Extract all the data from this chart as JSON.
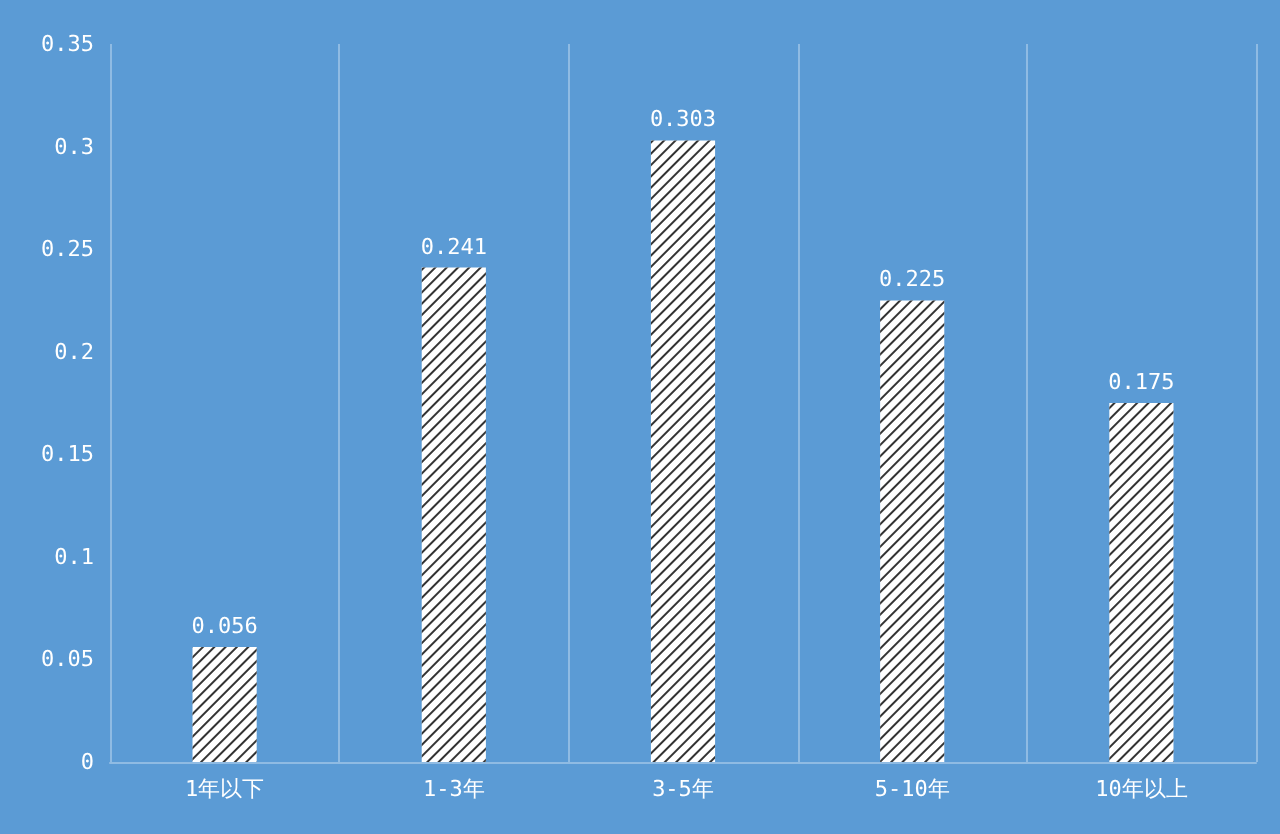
{
  "chart_data": {
    "type": "bar",
    "categories": [
      "1年以下",
      "1-3年",
      "3-5年",
      "5-10年",
      "10年以上"
    ],
    "values": [
      0.056,
      0.241,
      0.303,
      0.225,
      0.175
    ],
    "color": "#ffffff",
    "ylim": [
      0,
      0.35
    ],
    "yticks": [
      0,
      0.05,
      0.1,
      0.15,
      0.2,
      0.25,
      0.3,
      0.35
    ],
    "grid": "x",
    "data_labels": true
  }
}
